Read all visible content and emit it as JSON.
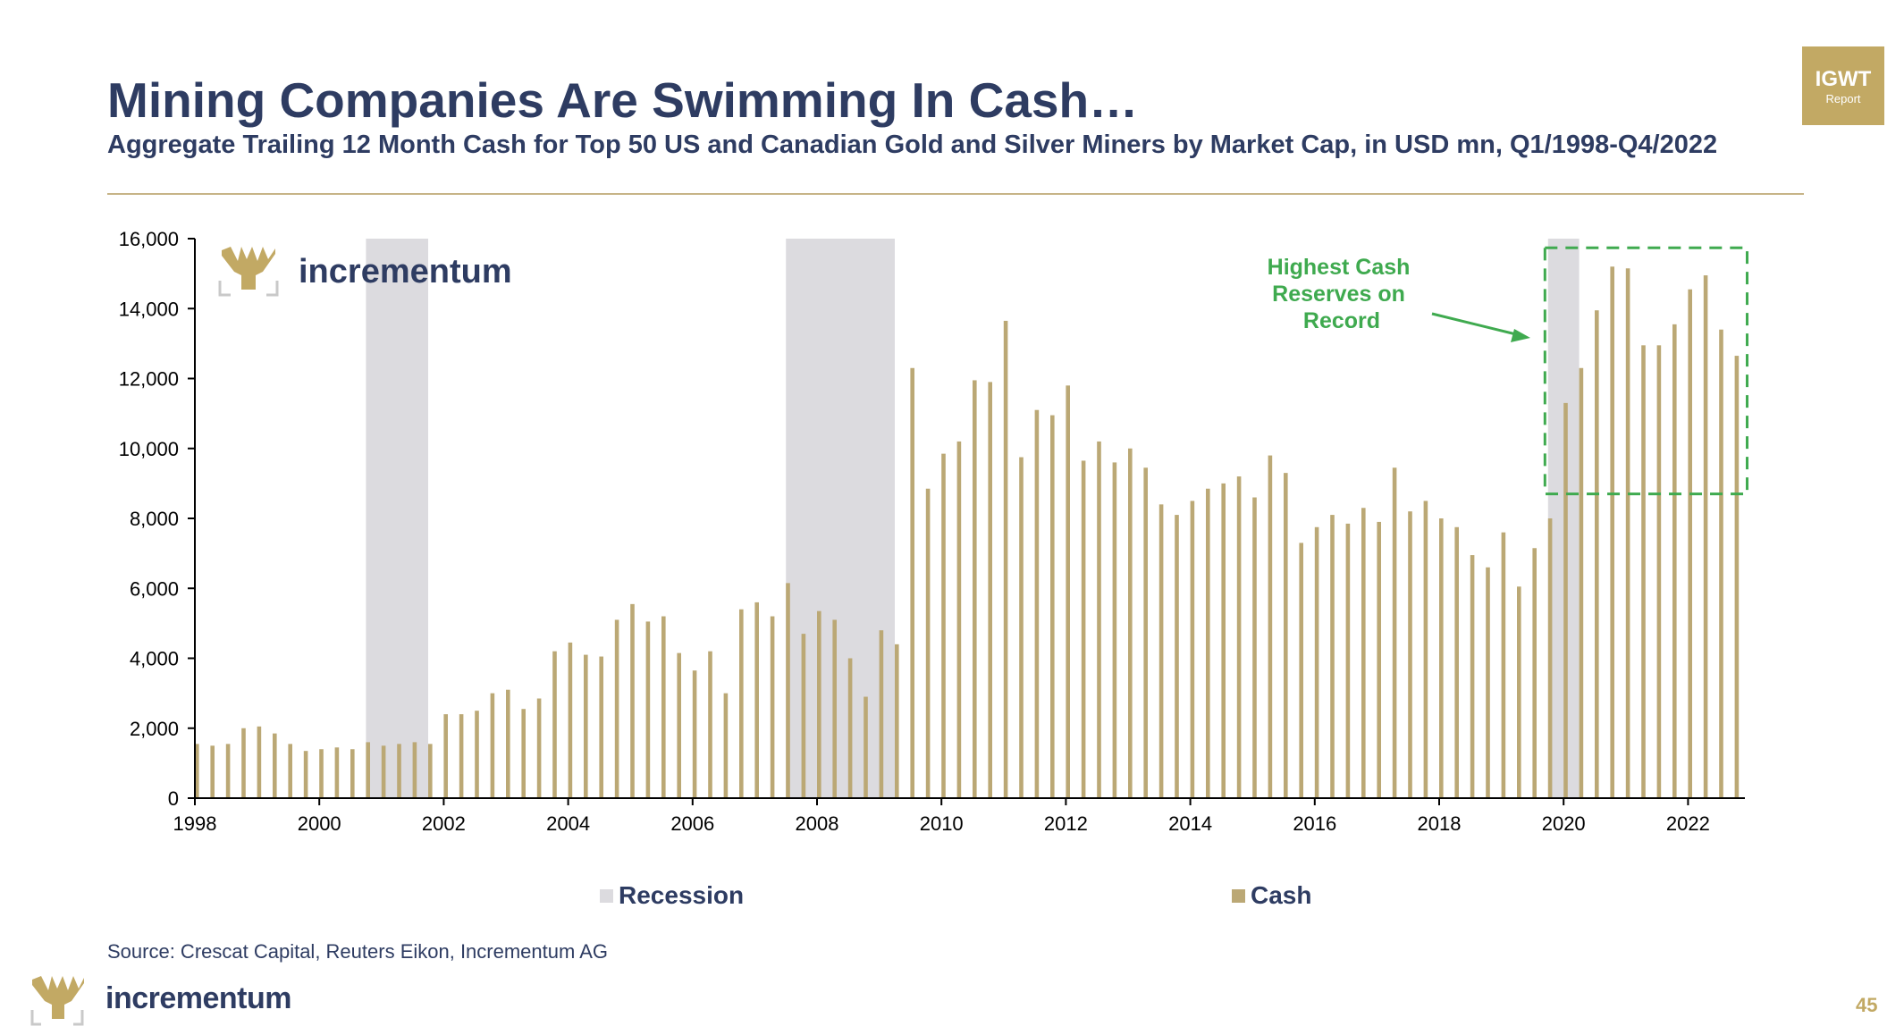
{
  "header": {
    "title": "Mining Companies Are Swimming In Cash…",
    "subtitle": "Aggregate Trailing 12 Month Cash for Top 50 US and Canadian Gold and Silver Miners by Market Cap, in USD mn, Q1/1998-Q4/2022"
  },
  "badge": {
    "main": "IGWT",
    "sub": "Report"
  },
  "brand": {
    "name": "incrementum"
  },
  "colors": {
    "cash": "#bba875",
    "recession": "#dcdbdf",
    "title": "#2e3c62",
    "annotation": "#3faa4f",
    "gold": "#c2a964"
  },
  "chart_data": {
    "type": "bar",
    "title": "",
    "xlabel": "",
    "ylabel": "",
    "x_start_year": 1998,
    "x_ticks": [
      "1998",
      "2000",
      "2002",
      "2004",
      "2006",
      "2008",
      "2010",
      "2012",
      "2014",
      "2016",
      "2018",
      "2020",
      "2022"
    ],
    "y_ticks": [
      "0",
      "2,000",
      "4,000",
      "6,000",
      "8,000",
      "10,000",
      "12,000",
      "14,000",
      "16,000"
    ],
    "ylim": [
      0,
      16000
    ],
    "xlim": [
      1998,
      2022.85
    ],
    "series": [
      {
        "name": "Cash",
        "x": [
          1998.0,
          1998.25,
          1998.5,
          1998.75,
          1999.0,
          1999.25,
          1999.5,
          1999.75,
          2000.0,
          2000.25,
          2000.5,
          2000.75,
          2001.0,
          2001.25,
          2001.5,
          2001.75,
          2002.0,
          2002.25,
          2002.5,
          2002.75,
          2003.0,
          2003.25,
          2003.5,
          2003.75,
          2004.0,
          2004.25,
          2004.5,
          2004.75,
          2005.0,
          2005.25,
          2005.5,
          2005.75,
          2006.0,
          2006.25,
          2006.5,
          2006.75,
          2007.0,
          2007.25,
          2007.5,
          2007.75,
          2008.0,
          2008.25,
          2008.5,
          2008.75,
          2009.0,
          2009.25,
          2009.5,
          2009.75,
          2010.0,
          2010.25,
          2010.5,
          2010.75,
          2011.0,
          2011.25,
          2011.5,
          2011.75,
          2012.0,
          2012.25,
          2012.5,
          2012.75,
          2013.0,
          2013.25,
          2013.5,
          2013.75,
          2014.0,
          2014.25,
          2014.5,
          2014.75,
          2015.0,
          2015.25,
          2015.5,
          2015.75,
          2016.0,
          2016.25,
          2016.5,
          2016.75,
          2017.0,
          2017.25,
          2017.5,
          2017.75,
          2018.0,
          2018.25,
          2018.5,
          2018.75,
          2019.0,
          2019.25,
          2019.5,
          2019.75,
          2020.0,
          2020.25,
          2020.5,
          2020.75,
          2021.0,
          2021.25,
          2021.5,
          2021.75,
          2022.0,
          2022.25,
          2022.5,
          2022.75
        ],
        "values": [
          1550,
          1500,
          1550,
          2000,
          2050,
          1850,
          1550,
          1350,
          1400,
          1450,
          1400,
          1600,
          1500,
          1550,
          1600,
          1550,
          2400,
          2400,
          2500,
          3000,
          3100,
          2550,
          2850,
          4200,
          4450,
          4100,
          4050,
          5100,
          5550,
          5050,
          5200,
          4150,
          3650,
          4200,
          3000,
          5400,
          5600,
          5200,
          6150,
          4700,
          5350,
          5100,
          4000,
          2900,
          4800,
          4400,
          12300,
          8850,
          9850,
          10200,
          11950,
          11900,
          13650,
          9750,
          11100,
          10950,
          11800,
          9650,
          10200,
          9600,
          10000,
          9450,
          8400,
          8100,
          8500,
          8850,
          9000,
          9200,
          8600,
          9800,
          9300,
          7300,
          7750,
          8100,
          7850,
          8300,
          7900,
          9450,
          8200,
          8500,
          8000,
          7750,
          6950,
          6600,
          7600,
          6050,
          7150,
          8000,
          11300,
          12300,
          13950,
          15200,
          15150,
          12950,
          12950,
          13550,
          14550,
          14950,
          13400,
          12650
        ]
      }
    ],
    "recessions": [
      [
        2000.75,
        2001.75
      ],
      [
        2007.5,
        2009.25
      ],
      [
        2019.75,
        2020.25
      ]
    ],
    "legend": {
      "items": [
        "Recession",
        "Cash"
      ],
      "position": "bottom"
    },
    "annotation": {
      "lines": [
        "Highest Cash",
        "Reserves on",
        "Record"
      ],
      "highlight_x": [
        2019.7,
        2022.95
      ],
      "highlight_y": [
        8700,
        15200
      ]
    },
    "grid": false
  },
  "footer": {
    "source": "Source: Crescat Capital, Reuters Eikon, Incrementum AG",
    "page": "45"
  }
}
